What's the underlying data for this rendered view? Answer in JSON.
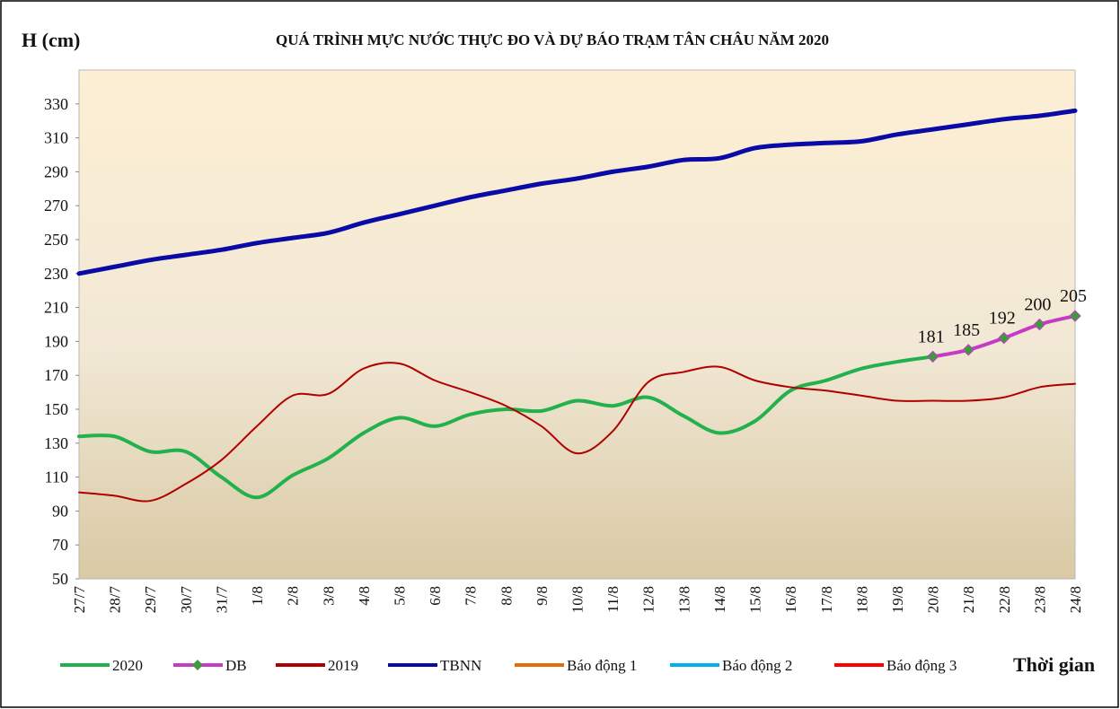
{
  "chart_data": {
    "type": "line",
    "title": "QUÁ TRÌNH MỰC NƯỚC THỰC ĐO VÀ DỰ BÁO TRẠM TÂN CHÂU NĂM 2020",
    "y_label": "H (cm)",
    "x_label": "Thời gian",
    "categories": [
      "27/7",
      "28/7",
      "29/7",
      "30/7",
      "31/7",
      "1/8",
      "2/8",
      "3/8",
      "4/8",
      "5/8",
      "6/8",
      "7/8",
      "8/8",
      "9/8",
      "10/8",
      "11/8",
      "12/8",
      "13/8",
      "14/8",
      "15/8",
      "16/8",
      "17/8",
      "18/8",
      "19/8",
      "20/8",
      "21/8",
      "22/8",
      "23/8",
      "24/8"
    ],
    "ylim": [
      50,
      350
    ],
    "yticks": [
      50,
      70,
      90,
      110,
      130,
      150,
      170,
      190,
      210,
      230,
      250,
      270,
      290,
      310,
      330
    ],
    "series": [
      {
        "name": "2020",
        "color": "#22b14c",
        "values": [
          134,
          134,
          125,
          125,
          110,
          98,
          111,
          121,
          136,
          145,
          140,
          147,
          150,
          149,
          155,
          152,
          157,
          146,
          136,
          143,
          161,
          167,
          174,
          178,
          181,
          null,
          null,
          null,
          null
        ]
      },
      {
        "name": "DB",
        "color": "#c43cc4",
        "marker_color": "#3f9a3f",
        "values": [
          null,
          null,
          null,
          null,
          null,
          null,
          null,
          null,
          null,
          null,
          null,
          null,
          null,
          null,
          null,
          null,
          null,
          null,
          null,
          null,
          null,
          null,
          null,
          null,
          181,
          185,
          192,
          200,
          205
        ],
        "data_labels": true
      },
      {
        "name": "2019",
        "color": "#b00000",
        "values": [
          101,
          99,
          96,
          106,
          120,
          140,
          158,
          159,
          174,
          177,
          167,
          160,
          152,
          140,
          124,
          137,
          166,
          172,
          175,
          167,
          163,
          161,
          158,
          155,
          155,
          155,
          157,
          163,
          165
        ]
      },
      {
        "name": "TBNN",
        "color": "#0a0aa6",
        "values": [
          230,
          234,
          238,
          241,
          244,
          248,
          251,
          254,
          260,
          265,
          270,
          275,
          279,
          283,
          286,
          290,
          293,
          297,
          298,
          304,
          306,
          307,
          308,
          312,
          315,
          318,
          321,
          323,
          326
        ]
      },
      {
        "name": "Báo động 1",
        "color": "#e36c09",
        "values": [
          null,
          null,
          null,
          null,
          null,
          null,
          null,
          null,
          null,
          null,
          null,
          null,
          null,
          null,
          null,
          null,
          null,
          null,
          null,
          null,
          null,
          null,
          null,
          null,
          null,
          null,
          null,
          null,
          null
        ]
      },
      {
        "name": "Báo động 2",
        "color": "#00b0f0",
        "values": [
          null,
          null,
          null,
          null,
          null,
          null,
          null,
          null,
          null,
          null,
          null,
          null,
          null,
          null,
          null,
          null,
          null,
          null,
          null,
          null,
          null,
          null,
          null,
          null,
          null,
          null,
          null,
          null,
          null
        ]
      },
      {
        "name": "Báo động 3",
        "color": "#ff0000",
        "values": [
          null,
          null,
          null,
          null,
          null,
          null,
          null,
          null,
          null,
          null,
          null,
          null,
          null,
          null,
          null,
          null,
          null,
          null,
          null,
          null,
          null,
          null,
          null,
          null,
          null,
          null,
          null,
          null,
          null
        ]
      }
    ]
  }
}
